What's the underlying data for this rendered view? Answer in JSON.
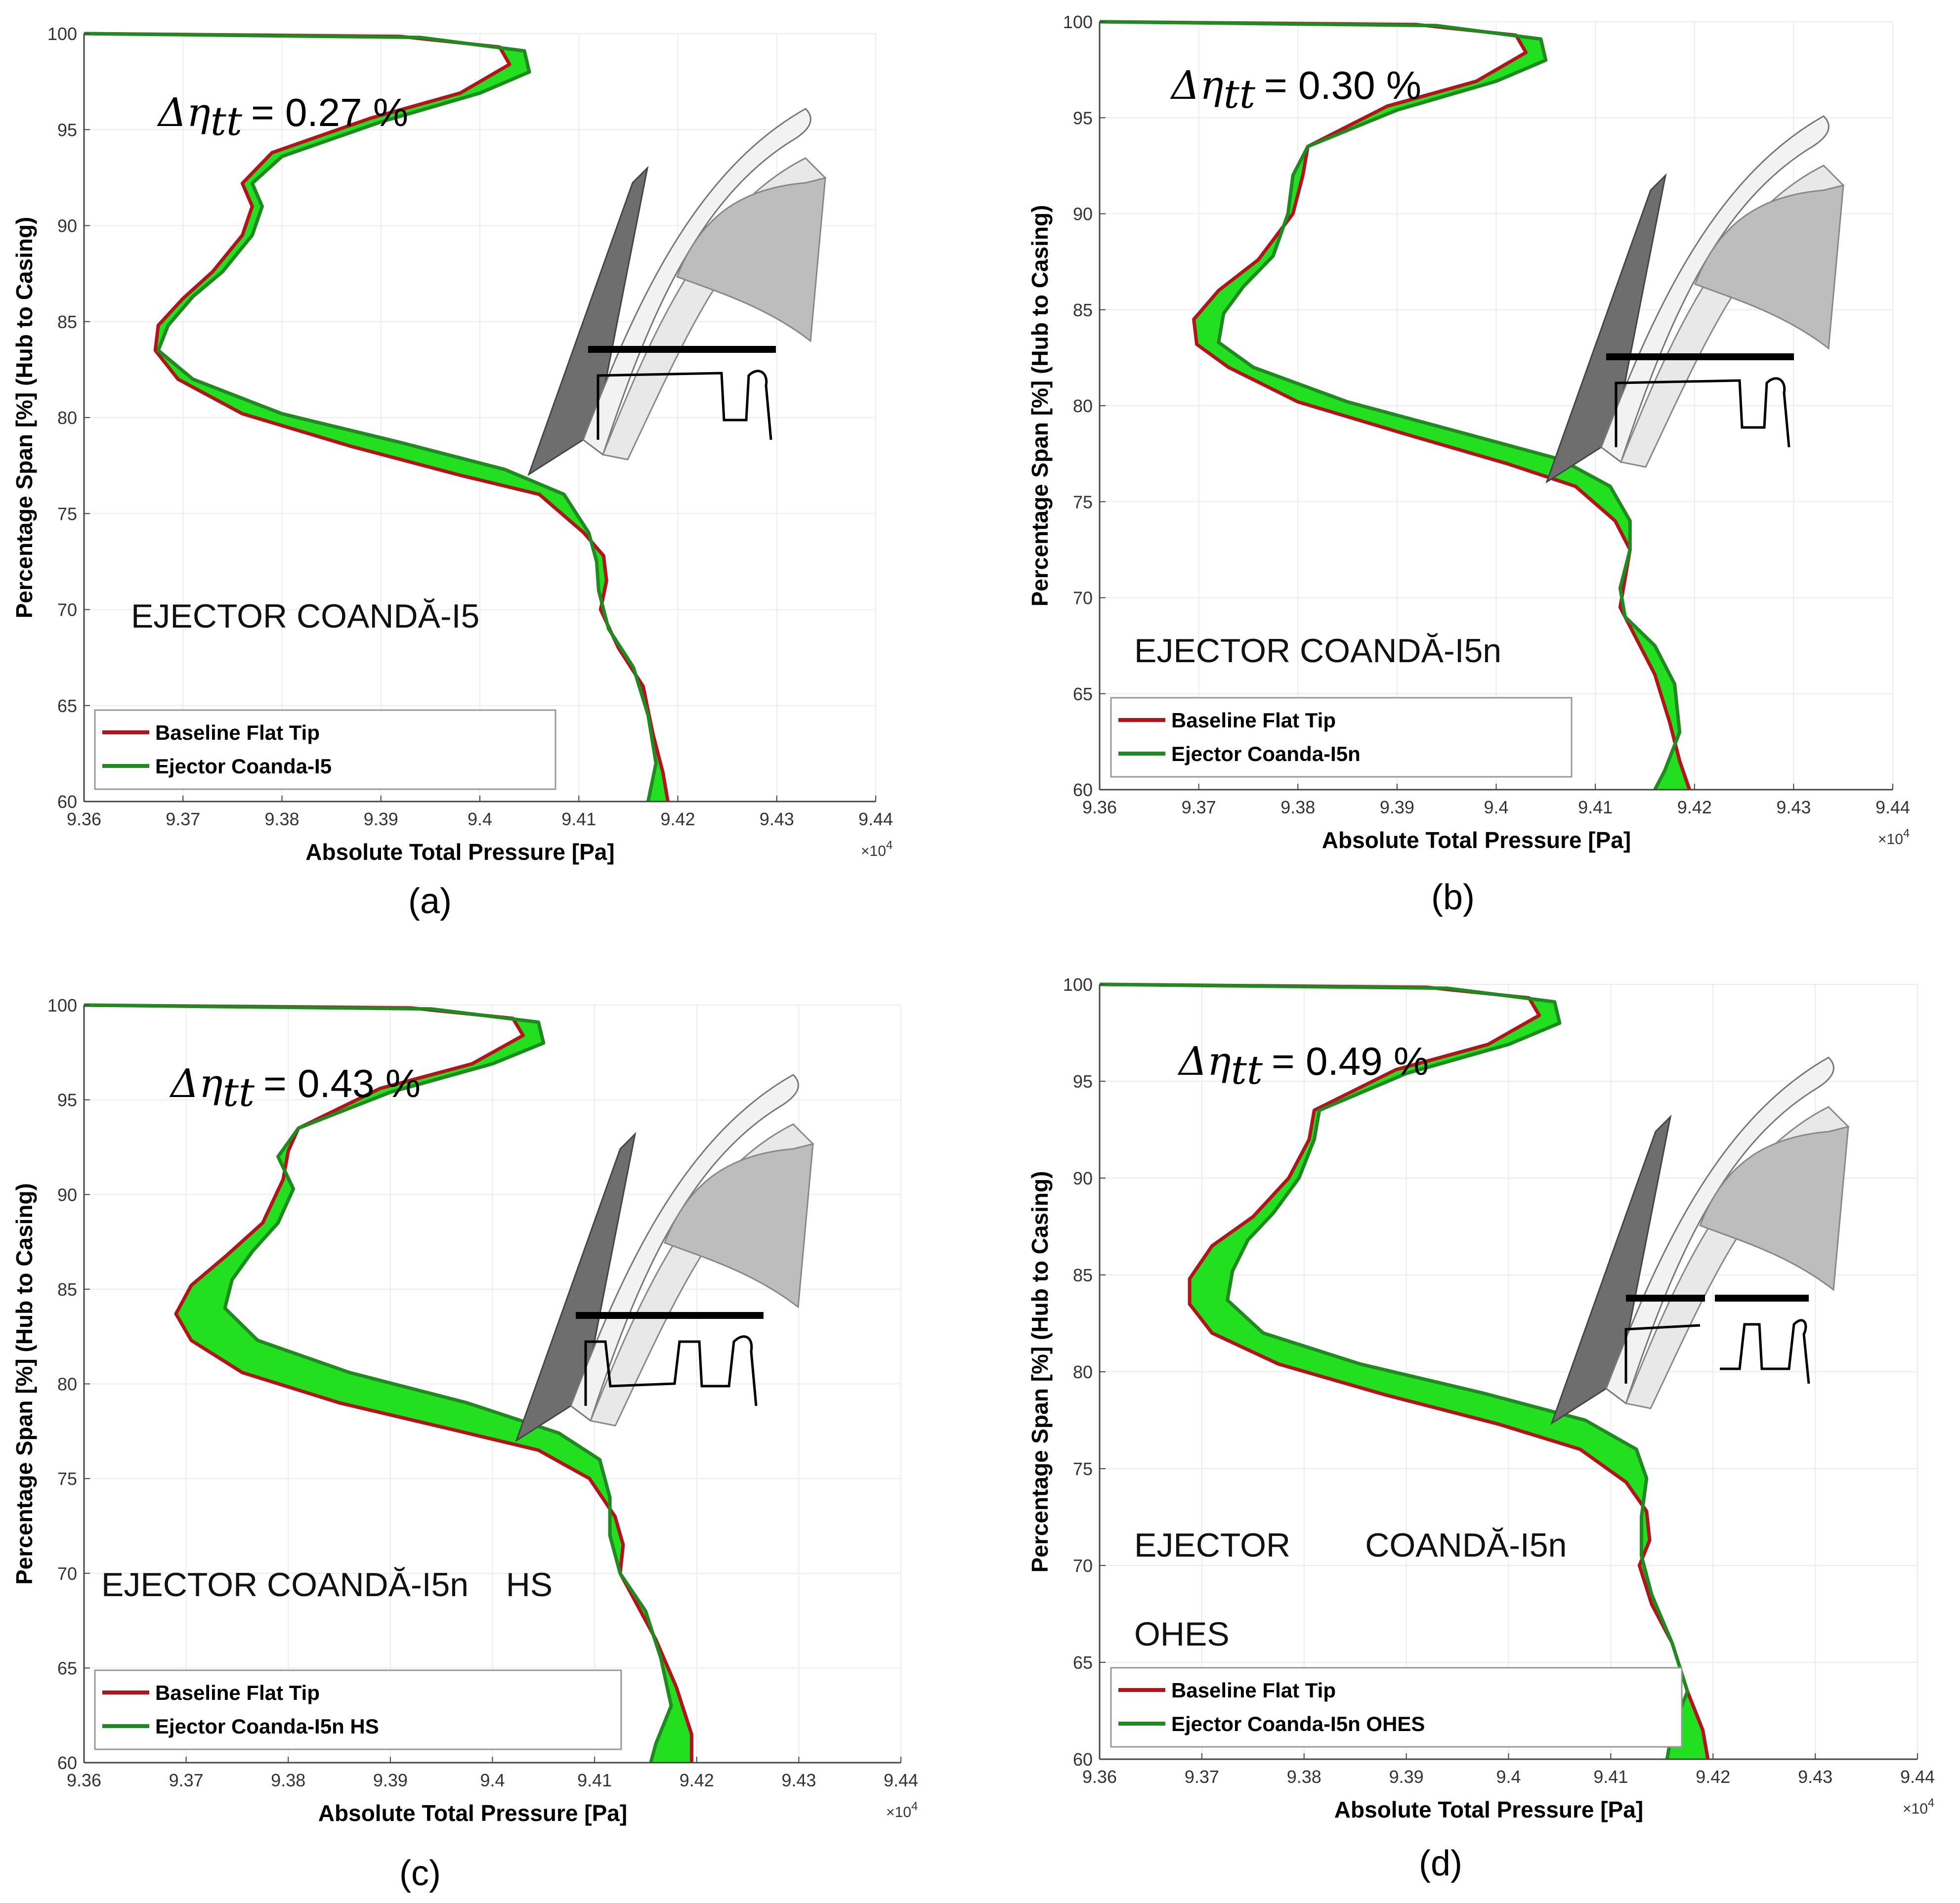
{
  "chart_data": [
    {
      "type": "line",
      "panel_label": "(a)",
      "xlabel": "Absolute Total Pressure [Pa]",
      "x_exponent": "×10",
      "x_exponent_power": "4",
      "ylabel": "Percentage Span [%] (Hub to Casing)",
      "xlim": [
        9.36,
        9.44
      ],
      "ylim": [
        60,
        100
      ],
      "x_ticks": [
        "9.36",
        "9.37",
        "9.38",
        "9.39",
        "9.4",
        "9.41",
        "9.42",
        "9.43",
        "9.44"
      ],
      "y_ticks": [
        "60",
        "65",
        "70",
        "75",
        "80",
        "85",
        "90",
        "95",
        "100"
      ],
      "efficiency_symbol": "Δη",
      "efficiency_subscript": "tt",
      "efficiency_value": "= 0.27 %",
      "annotation": "EJECTOR COANDĂ-I5",
      "legend_location": "bottom-left",
      "series": [
        {
          "name": "Baseline Flat Tip",
          "color": "#b5121b",
          "points": [
            [
              9.36,
              100
            ],
            [
              9.392,
              99.85
            ],
            [
              9.402,
              99.3
            ],
            [
              9.403,
              98.4
            ],
            [
              9.398,
              96.9
            ],
            [
              9.389,
              95.6
            ],
            [
              9.379,
              93.8
            ],
            [
              9.376,
              92.2
            ],
            [
              9.377,
              91.0
            ],
            [
              9.376,
              89.5
            ],
            [
              9.373,
              87.6
            ],
            [
              9.37,
              86.2
            ],
            [
              9.3675,
              84.8
            ],
            [
              9.3672,
              83.5
            ],
            [
              9.3695,
              82.0
            ],
            [
              9.376,
              80.2
            ],
            [
              9.387,
              78.5
            ],
            [
              9.398,
              77.0
            ],
            [
              9.406,
              76.0
            ],
            [
              9.4105,
              74.0
            ],
            [
              9.4125,
              72.8
            ],
            [
              9.4128,
              71.5
            ],
            [
              9.4122,
              70.0
            ],
            [
              9.414,
              68.0
            ],
            [
              9.4165,
              66.0
            ],
            [
              9.4175,
              63.5
            ],
            [
              9.4185,
              61.5
            ],
            [
              9.419,
              60.0
            ]
          ]
        },
        {
          "name": "Ejector Coanda-I5",
          "color": "#1f8a1f",
          "points": [
            [
              9.36,
              100
            ],
            [
              9.394,
              99.8
            ],
            [
              9.4045,
              99.1
            ],
            [
              9.405,
              98.0
            ],
            [
              9.4,
              96.9
            ],
            [
              9.39,
              95.4
            ],
            [
              9.38,
              93.6
            ],
            [
              9.377,
              92.2
            ],
            [
              9.378,
              91.0
            ],
            [
              9.377,
              89.5
            ],
            [
              9.374,
              87.6
            ],
            [
              9.371,
              86.3
            ],
            [
              9.3685,
              84.8
            ],
            [
              9.3675,
              83.5
            ],
            [
              9.371,
              82.0
            ],
            [
              9.38,
              80.2
            ],
            [
              9.392,
              78.7
            ],
            [
              9.4025,
              77.3
            ],
            [
              9.4085,
              76.0
            ],
            [
              9.411,
              74.0
            ],
            [
              9.4118,
              72.5
            ],
            [
              9.412,
              71.0
            ],
            [
              9.413,
              69.0
            ],
            [
              9.4155,
              67.0
            ],
            [
              9.417,
              64.5
            ],
            [
              9.4178,
              62.0
            ],
            [
              9.417,
              60.0
            ]
          ]
        }
      ]
    },
    {
      "type": "line",
      "panel_label": "(b)",
      "xlabel": "Absolute Total Pressure [Pa]",
      "x_exponent": "×10",
      "x_exponent_power": "4",
      "ylabel": "Percentage Span [%] (Hub to Casing)",
      "xlim": [
        9.36,
        9.44
      ],
      "ylim": [
        60,
        100
      ],
      "x_ticks": [
        "9.36",
        "9.37",
        "9.38",
        "9.39",
        "9.4",
        "9.41",
        "9.42",
        "9.43",
        "9.44"
      ],
      "y_ticks": [
        "60",
        "65",
        "70",
        "75",
        "80",
        "85",
        "90",
        "95",
        "100"
      ],
      "efficiency_symbol": "Δη",
      "efficiency_subscript": "tt",
      "efficiency_value": "= 0.30 %",
      "annotation": "EJECTOR COANDĂ-I5n",
      "legend_location": "bottom-left",
      "series": [
        {
          "name": "Baseline Flat Tip",
          "color": "#b5121b",
          "points": [
            [
              9.36,
              100
            ],
            [
              9.392,
              99.85
            ],
            [
              9.402,
              99.3
            ],
            [
              9.403,
              98.4
            ],
            [
              9.398,
              96.9
            ],
            [
              9.389,
              95.6
            ],
            [
              9.381,
              93.5
            ],
            [
              9.3805,
              92.0
            ],
            [
              9.3795,
              90.0
            ],
            [
              9.376,
              87.6
            ],
            [
              9.372,
              86.0
            ],
            [
              9.3695,
              84.5
            ],
            [
              9.3698,
              83.2
            ],
            [
              9.373,
              82.0
            ],
            [
              9.38,
              80.2
            ],
            [
              9.391,
              78.5
            ],
            [
              9.401,
              77.0
            ],
            [
              9.408,
              75.8
            ],
            [
              9.412,
              74.0
            ],
            [
              9.4135,
              72.5
            ],
            [
              9.413,
              71.0
            ],
            [
              9.4125,
              69.5
            ],
            [
              9.414,
              68.0
            ],
            [
              9.416,
              66.0
            ],
            [
              9.4175,
              63.5
            ],
            [
              9.4185,
              61.5
            ],
            [
              9.4195,
              60.0
            ]
          ]
        },
        {
          "name": "Ejector Coanda-I5n",
          "color": "#1f8a1f",
          "points": [
            [
              9.36,
              100
            ],
            [
              9.394,
              99.8
            ],
            [
              9.4045,
              99.1
            ],
            [
              9.405,
              98.0
            ],
            [
              9.4,
              96.9
            ],
            [
              9.39,
              95.4
            ],
            [
              9.381,
              93.5
            ],
            [
              9.3795,
              92.0
            ],
            [
              9.379,
              90.0
            ],
            [
              9.3775,
              87.8
            ],
            [
              9.3745,
              86.2
            ],
            [
              9.3725,
              84.8
            ],
            [
              9.372,
              83.3
            ],
            [
              9.3755,
              82.0
            ],
            [
              9.385,
              80.2
            ],
            [
              9.3965,
              78.6
            ],
            [
              9.4065,
              77.2
            ],
            [
              9.4115,
              75.8
            ],
            [
              9.4135,
              74.0
            ],
            [
              9.4135,
              72.5
            ],
            [
              9.4125,
              70.5
            ],
            [
              9.413,
              69.0
            ],
            [
              9.416,
              67.5
            ],
            [
              9.418,
              65.5
            ],
            [
              9.4185,
              63.0
            ],
            [
              9.417,
              61.0
            ],
            [
              9.416,
              60.0
            ]
          ]
        }
      ]
    },
    {
      "type": "line",
      "panel_label": "(c)",
      "xlabel": "Absolute Total Pressure [Pa]",
      "x_exponent": "×10",
      "x_exponent_power": "4",
      "ylabel": "Percentage Span [%] (Hub to Casing)",
      "xlim": [
        9.36,
        9.44
      ],
      "ylim": [
        60,
        100
      ],
      "x_ticks": [
        "9.36",
        "9.37",
        "9.38",
        "9.39",
        "9.4",
        "9.41",
        "9.42",
        "9.43",
        "9.44"
      ],
      "y_ticks": [
        "60",
        "65",
        "70",
        "75",
        "80",
        "85",
        "90",
        "95",
        "100"
      ],
      "efficiency_symbol": "Δη",
      "efficiency_subscript": "tt",
      "efficiency_value": "= 0.43 %",
      "annotation": "EJECTOR COANDĂ-I5n    HS",
      "legend_location": "bottom-left",
      "series": [
        {
          "name": "Baseline Flat Tip",
          "color": "#b5121b",
          "points": [
            [
              9.36,
              100
            ],
            [
              9.392,
              99.85
            ],
            [
              9.402,
              99.3
            ],
            [
              9.403,
              98.4
            ],
            [
              9.398,
              96.9
            ],
            [
              9.389,
              95.6
            ],
            [
              9.381,
              93.5
            ],
            [
              9.38,
              92.3
            ],
            [
              9.3795,
              90.8
            ],
            [
              9.3775,
              88.5
            ],
            [
              9.374,
              86.8
            ],
            [
              9.3705,
              85.2
            ],
            [
              9.369,
              83.7
            ],
            [
              9.3705,
              82.3
            ],
            [
              9.3755,
              80.6
            ],
            [
              9.385,
              79.0
            ],
            [
              9.396,
              77.6
            ],
            [
              9.4045,
              76.5
            ],
            [
              9.4095,
              75.0
            ],
            [
              9.412,
              73.0
            ],
            [
              9.4128,
              71.5
            ],
            [
              9.4125,
              70.0
            ],
            [
              9.414,
              68.5
            ],
            [
              9.416,
              66.5
            ],
            [
              9.418,
              64.0
            ],
            [
              9.4195,
              61.5
            ],
            [
              9.4195,
              60.0
            ]
          ]
        },
        {
          "name": "Ejector Coanda-I5n HS",
          "color": "#1f8a1f",
          "points": [
            [
              9.36,
              100
            ],
            [
              9.394,
              99.8
            ],
            [
              9.4045,
              99.1
            ],
            [
              9.405,
              98.0
            ],
            [
              9.4,
              96.9
            ],
            [
              9.39,
              95.4
            ],
            [
              9.381,
              93.5
            ],
            [
              9.379,
              92.0
            ],
            [
              9.3805,
              90.3
            ],
            [
              9.379,
              88.5
            ],
            [
              9.3765,
              87.0
            ],
            [
              9.3745,
              85.5
            ],
            [
              9.3738,
              84.0
            ],
            [
              9.377,
              82.3
            ],
            [
              9.386,
              80.6
            ],
            [
              9.3975,
              79.0
            ],
            [
              9.4065,
              77.4
            ],
            [
              9.4105,
              76.0
            ],
            [
              9.4115,
              74.0
            ],
            [
              9.4115,
              72.0
            ],
            [
              9.4125,
              70.0
            ],
            [
              9.415,
              68.0
            ],
            [
              9.4165,
              65.5
            ],
            [
              9.4175,
              63.0
            ],
            [
              9.416,
              61.0
            ],
            [
              9.4155,
              60.0
            ]
          ]
        }
      ]
    },
    {
      "type": "line",
      "panel_label": "(d)",
      "xlabel": "Absolute Total Pressure [Pa]",
      "x_exponent": "×10",
      "x_exponent_power": "4",
      "ylabel": "Percentage Span [%] (Hub to Casing)",
      "xlim": [
        9.36,
        9.44
      ],
      "ylim": [
        60,
        100
      ],
      "x_ticks": [
        "9.36",
        "9.37",
        "9.38",
        "9.39",
        "9.4",
        "9.41",
        "9.42",
        "9.43",
        "9.44"
      ],
      "y_ticks": [
        "60",
        "65",
        "70",
        "75",
        "80",
        "85",
        "90",
        "95",
        "100"
      ],
      "efficiency_symbol": "Δη",
      "efficiency_subscript": "tt",
      "efficiency_value": "= 0.49 %",
      "annotation": "EJECTOR        COANDĂ-I5n",
      "annotation2": "OHES",
      "legend_location": "bottom-left",
      "series": [
        {
          "name": "Baseline Flat Tip",
          "color": "#b5121b",
          "points": [
            [
              9.36,
              100
            ],
            [
              9.392,
              99.85
            ],
            [
              9.402,
              99.3
            ],
            [
              9.403,
              98.4
            ],
            [
              9.398,
              96.9
            ],
            [
              9.389,
              95.6
            ],
            [
              9.381,
              93.5
            ],
            [
              9.3805,
              92.0
            ],
            [
              9.3785,
              90.0
            ],
            [
              9.375,
              88.0
            ],
            [
              9.371,
              86.5
            ],
            [
              9.3688,
              84.8
            ],
            [
              9.3688,
              83.5
            ],
            [
              9.371,
              82.0
            ],
            [
              9.3775,
              80.4
            ],
            [
              9.388,
              78.8
            ],
            [
              9.399,
              77.3
            ],
            [
              9.407,
              76.0
            ],
            [
              9.4115,
              74.3
            ],
            [
              9.4135,
              72.8
            ],
            [
              9.4138,
              71.3
            ],
            [
              9.4128,
              70.0
            ],
            [
              9.414,
              68.0
            ],
            [
              9.416,
              66.0
            ],
            [
              9.4175,
              63.5
            ],
            [
              9.419,
              61.5
            ],
            [
              9.4195,
              60.0
            ]
          ]
        },
        {
          "name": "Ejector Coanda-I5n OHES",
          "color": "#1f8a1f",
          "points": [
            [
              9.36,
              100
            ],
            [
              9.394,
              99.8
            ],
            [
              9.4045,
              99.1
            ],
            [
              9.405,
              98.0
            ],
            [
              9.4,
              96.9
            ],
            [
              9.39,
              95.4
            ],
            [
              9.3815,
              93.5
            ],
            [
              9.381,
              92.0
            ],
            [
              9.3795,
              90.0
            ],
            [
              9.377,
              88.2
            ],
            [
              9.3745,
              86.8
            ],
            [
              9.373,
              85.2
            ],
            [
              9.3725,
              83.7
            ],
            [
              9.376,
              82.0
            ],
            [
              9.3855,
              80.4
            ],
            [
              9.3975,
              78.9
            ],
            [
              9.4075,
              77.5
            ],
            [
              9.4125,
              76.0
            ],
            [
              9.4135,
              74.5
            ],
            [
              9.413,
              72.5
            ],
            [
              9.413,
              70.5
            ],
            [
              9.414,
              68.5
            ],
            [
              9.416,
              66.0
            ],
            [
              9.4175,
              63.5
            ],
            [
              9.416,
              61.5
            ],
            [
              9.4155,
              60.0
            ]
          ]
        }
      ]
    }
  ]
}
